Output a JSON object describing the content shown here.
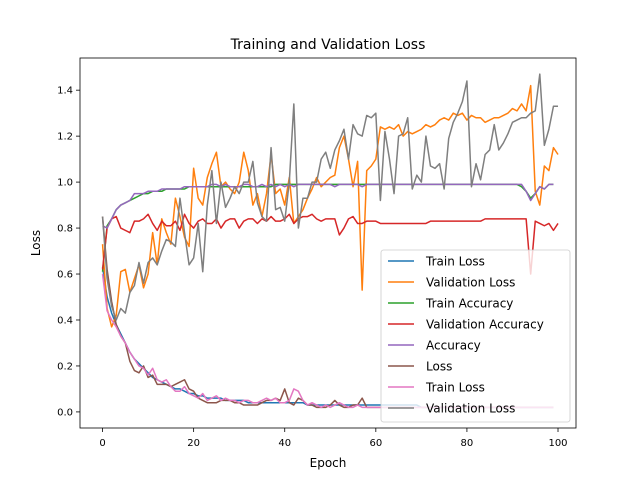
{
  "chart_data": {
    "type": "line",
    "title": "Training and Validation Loss",
    "xlabel": "Epoch",
    "ylabel": "Loss",
    "xlim": [
      -4.95,
      103.95
    ],
    "ylim": [
      -0.07,
      1.54
    ],
    "xticks": [
      0,
      20,
      40,
      60,
      80,
      100
    ],
    "yticks": [
      0.0,
      0.2,
      0.4,
      0.6,
      0.8,
      1.0,
      1.2,
      1.4
    ],
    "xtick_labels": [
      "0",
      "20",
      "40",
      "60",
      "80",
      "100"
    ],
    "ytick_labels": [
      "0.0",
      "0.2",
      "0.4",
      "0.6",
      "0.8",
      "1.0",
      "1.2",
      "1.4"
    ],
    "grid": false,
    "legend_position": "lower-right",
    "series": [
      {
        "name": "Train Loss",
        "color": "#1f77b4",
        "values": [
          0.63,
          0.5,
          0.43,
          0.38,
          0.34,
          0.3,
          0.26,
          0.23,
          0.21,
          0.19,
          0.17,
          0.15,
          0.14,
          0.13,
          0.12,
          0.11,
          0.1,
          0.1,
          0.09,
          0.08,
          0.08,
          0.07,
          0.07,
          0.06,
          0.06,
          0.06,
          0.06,
          0.05,
          0.05,
          0.05,
          0.05,
          0.05,
          0.04,
          0.04,
          0.04,
          0.04,
          0.04,
          0.04,
          0.04,
          0.04,
          0.04,
          0.04,
          0.04,
          0.04,
          0.04,
          0.03,
          0.03,
          0.03,
          0.03,
          0.03,
          0.03,
          0.03,
          0.03,
          0.03,
          0.03,
          0.03,
          0.03,
          0.03,
          0.03,
          0.03,
          0.03,
          0.03,
          0.03,
          0.03,
          0.03,
          0.03,
          0.03,
          0.03,
          0.03,
          0.03,
          0.02,
          0.02,
          0.02,
          0.02,
          0.02,
          0.02,
          0.02,
          0.02,
          0.02,
          0.02,
          0.02,
          0.02,
          0.02,
          0.02,
          0.02,
          0.02,
          0.02,
          0.02,
          0.02,
          0.02,
          0.02,
          0.02,
          0.02,
          0.02,
          0.02,
          0.02,
          0.02,
          0.02,
          0.02,
          0.02
        ]
      },
      {
        "name": "Validation Loss",
        "color": "#ff7f0e",
        "values": [
          0.73,
          0.45,
          0.37,
          0.42,
          0.61,
          0.62,
          0.52,
          0.58,
          0.64,
          0.54,
          0.6,
          0.78,
          0.64,
          0.84,
          0.78,
          0.73,
          0.93,
          0.85,
          0.76,
          0.72,
          1.06,
          0.93,
          0.9,
          1.02,
          1.08,
          1.13,
          0.98,
          1.0,
          0.97,
          0.95,
          1.0,
          1.13,
          1.05,
          0.9,
          0.95,
          0.85,
          0.95,
          1.12,
          0.95,
          0.97,
          0.9,
          1.02,
          0.82,
          0.85,
          0.88,
          0.93,
          0.97,
          1.02,
          0.98,
          1.0,
          1.02,
          1.03,
          1.15,
          1.2,
          1.1,
          0.98,
          1.09,
          0.53,
          1.05,
          1.07,
          1.1,
          1.24,
          1.23,
          1.24,
          1.23,
          1.25,
          1.2,
          1.22,
          1.21,
          1.22,
          1.23,
          1.25,
          1.24,
          1.25,
          1.27,
          1.28,
          1.27,
          1.3,
          1.29,
          1.3,
          1.27,
          1.29,
          1.28,
          1.28,
          1.26,
          1.27,
          1.28,
          1.28,
          1.29,
          1.3,
          1.32,
          1.31,
          1.34,
          1.31,
          1.42,
          0.96,
          0.9,
          1.07,
          1.05,
          1.15,
          1.12
        ]
      },
      {
        "name": "Train Accuracy",
        "color": "#2ca02c",
        "values": [
          0.61,
          0.81,
          0.84,
          0.88,
          0.9,
          0.91,
          0.92,
          0.93,
          0.94,
          0.95,
          0.95,
          0.96,
          0.96,
          0.96,
          0.97,
          0.97,
          0.97,
          0.97,
          0.97,
          0.98,
          0.98,
          0.98,
          0.98,
          0.98,
          0.98,
          0.98,
          0.98,
          0.98,
          0.98,
          0.98,
          0.98,
          0.98,
          0.98,
          0.98,
          0.98,
          0.98,
          0.98,
          0.98,
          0.99,
          0.99,
          0.99,
          0.99,
          0.99,
          0.99,
          0.99,
          0.99,
          0.99,
          0.99,
          0.99,
          0.99,
          0.99,
          0.99,
          0.99,
          0.99,
          0.99,
          0.99,
          0.99,
          0.99,
          0.99,
          0.99,
          0.99,
          0.99,
          0.99,
          0.99,
          0.99,
          0.99,
          0.99,
          0.99,
          0.99,
          0.99,
          0.99,
          0.99,
          0.99,
          0.99,
          0.99,
          0.99,
          0.99,
          0.99,
          0.99,
          0.99,
          0.99,
          0.99,
          0.99,
          0.99,
          0.99,
          0.99,
          0.99,
          0.99,
          0.99,
          0.99,
          0.99,
          0.99,
          0.98,
          0.96,
          0.93,
          0.95,
          0.98,
          0.97,
          0.99,
          0.99
        ]
      },
      {
        "name": "Validation Accuracy",
        "color": "#d62728",
        "values": [
          0.62,
          0.8,
          0.84,
          0.85,
          0.8,
          0.79,
          0.78,
          0.83,
          0.83,
          0.84,
          0.86,
          0.82,
          0.79,
          0.83,
          0.81,
          0.81,
          0.83,
          0.79,
          0.86,
          0.82,
          0.8,
          0.83,
          0.84,
          0.82,
          0.82,
          0.84,
          0.8,
          0.83,
          0.84,
          0.84,
          0.8,
          0.83,
          0.84,
          0.84,
          0.82,
          0.84,
          0.83,
          0.85,
          0.83,
          0.83,
          0.84,
          0.86,
          0.82,
          0.84,
          0.85,
          0.85,
          0.86,
          0.84,
          0.83,
          0.84,
          0.84,
          0.84,
          0.77,
          0.8,
          0.84,
          0.85,
          0.82,
          0.82,
          0.83,
          0.83,
          0.83,
          0.82,
          0.82,
          0.82,
          0.82,
          0.82,
          0.82,
          0.82,
          0.82,
          0.82,
          0.82,
          0.82,
          0.83,
          0.83,
          0.83,
          0.83,
          0.83,
          0.83,
          0.83,
          0.83,
          0.83,
          0.83,
          0.83,
          0.83,
          0.84,
          0.84,
          0.84,
          0.84,
          0.84,
          0.84,
          0.84,
          0.84,
          0.84,
          0.84,
          0.6,
          0.83,
          0.82,
          0.81,
          0.82,
          0.79,
          0.82
        ]
      },
      {
        "name": "Accuracy",
        "color": "#9467bd",
        "values": [
          0.81,
          0.8,
          0.84,
          0.88,
          0.9,
          0.91,
          0.92,
          0.95,
          0.95,
          0.95,
          0.96,
          0.96,
          0.96,
          0.97,
          0.97,
          0.97,
          0.97,
          0.97,
          0.98,
          0.98,
          0.98,
          0.98,
          0.98,
          0.98,
          0.99,
          0.99,
          0.98,
          0.99,
          0.98,
          0.98,
          0.98,
          0.99,
          0.99,
          0.98,
          0.98,
          0.99,
          0.98,
          0.99,
          0.98,
          0.99,
          0.98,
          0.99,
          0.98,
          0.99,
          0.99,
          0.99,
          0.99,
          0.99,
          0.99,
          0.99,
          0.99,
          0.98,
          0.99,
          0.99,
          0.99,
          0.99,
          0.99,
          0.98,
          0.99,
          0.99,
          0.99,
          0.99,
          0.99,
          0.99,
          0.99,
          0.99,
          0.99,
          0.99,
          0.99,
          0.99,
          0.99,
          0.99,
          0.99,
          0.99,
          0.99,
          0.99,
          0.99,
          0.99,
          0.99,
          0.99,
          0.99,
          0.99,
          0.99,
          0.99,
          0.99,
          0.99,
          0.99,
          0.99,
          0.99,
          0.99,
          0.99,
          0.99,
          0.99,
          0.96,
          0.92,
          0.95,
          0.98,
          0.97,
          0.99,
          0.99
        ]
      },
      {
        "name": "Loss",
        "color": "#8c564b",
        "values": [
          0.85,
          0.62,
          0.48,
          0.38,
          0.33,
          0.3,
          0.22,
          0.18,
          0.17,
          0.2,
          0.15,
          0.16,
          0.12,
          0.12,
          0.12,
          0.11,
          0.12,
          0.13,
          0.14,
          0.1,
          0.09,
          0.06,
          0.05,
          0.04,
          0.04,
          0.04,
          0.05,
          0.05,
          0.05,
          0.04,
          0.04,
          0.03,
          0.03,
          0.03,
          0.03,
          0.04,
          0.05,
          0.05,
          0.06,
          0.05,
          0.1,
          0.04,
          0.03,
          0.06,
          0.05,
          0.03,
          0.03,
          0.02,
          0.02,
          0.02,
          0.03,
          0.05,
          0.03,
          0.02,
          0.02,
          0.03,
          0.03,
          0.06,
          0.02,
          0.02,
          0.02,
          0.02,
          0.02,
          0.02,
          0.02,
          0.02,
          0.02,
          0.02,
          0.02,
          0.02,
          0.02,
          0.02,
          0.02,
          0.02,
          0.02,
          0.02,
          0.02,
          0.02,
          0.02,
          0.02,
          0.02,
          0.02,
          0.02,
          0.02,
          0.02,
          0.02,
          0.02,
          0.02,
          0.02,
          0.02,
          0.02,
          0.02,
          0.02,
          0.02,
          0.02,
          0.02,
          0.02,
          0.02,
          0.02,
          0.02
        ]
      },
      {
        "name": "Train Loss",
        "color": "#e377c2",
        "values": [
          0.6,
          0.44,
          0.4,
          0.37,
          0.33,
          0.3,
          0.26,
          0.23,
          0.2,
          0.19,
          0.16,
          0.19,
          0.14,
          0.13,
          0.14,
          0.11,
          0.09,
          0.09,
          0.11,
          0.08,
          0.07,
          0.06,
          0.08,
          0.05,
          0.06,
          0.07,
          0.05,
          0.06,
          0.05,
          0.05,
          0.04,
          0.05,
          0.05,
          0.04,
          0.04,
          0.05,
          0.06,
          0.05,
          0.06,
          0.04,
          0.04,
          0.05,
          0.1,
          0.09,
          0.05,
          0.03,
          0.04,
          0.03,
          0.02,
          0.03,
          0.02,
          0.03,
          0.04,
          0.03,
          0.02,
          0.02,
          0.03,
          0.02,
          0.02,
          0.02,
          0.02,
          0.02,
          0.02,
          0.02,
          0.02,
          0.02,
          0.02,
          0.02,
          0.02,
          0.02,
          0.02,
          0.02,
          0.02,
          0.02,
          0.02,
          0.02,
          0.02,
          0.02,
          0.02,
          0.02,
          0.02,
          0.02,
          0.02,
          0.02,
          0.02,
          0.02,
          0.02,
          0.02,
          0.02,
          0.02,
          0.02,
          0.02,
          0.02,
          0.02,
          0.02,
          0.02,
          0.02,
          0.02,
          0.02,
          0.02
        ]
      },
      {
        "name": "Validation Loss",
        "color": "#7f7f7f",
        "values": [
          0.85,
          0.58,
          0.46,
          0.4,
          0.45,
          0.43,
          0.52,
          0.55,
          0.65,
          0.56,
          0.65,
          0.67,
          0.64,
          0.7,
          0.75,
          0.74,
          0.72,
          0.93,
          0.78,
          0.64,
          0.67,
          0.82,
          0.61,
          0.9,
          1.05,
          0.82,
          1.0,
          0.89,
          0.93,
          0.98,
          0.95,
          1.0,
          1.0,
          1.09,
          0.91,
          0.85,
          0.83,
          1.15,
          0.88,
          0.89,
          0.83,
          1.0,
          1.34,
          0.8,
          0.93,
          0.93,
          1.0,
          1.0,
          1.1,
          1.13,
          1.06,
          1.14,
          1.18,
          1.23,
          1.1,
          1.25,
          1.21,
          1.2,
          1.29,
          1.28,
          1.3,
          0.92,
          1.22,
          1.1,
          0.95,
          1.2,
          1.21,
          1.28,
          0.97,
          1.03,
          1.0,
          1.2,
          1.07,
          1.06,
          1.08,
          0.97,
          1.19,
          1.26,
          1.3,
          1.35,
          1.44,
          0.98,
          1.08,
          1.01,
          1.12,
          1.14,
          1.25,
          1.14,
          1.17,
          1.21,
          1.26,
          1.27,
          1.28,
          1.28,
          1.3,
          1.31,
          1.47,
          1.16,
          1.23,
          1.33,
          1.33
        ]
      }
    ]
  }
}
